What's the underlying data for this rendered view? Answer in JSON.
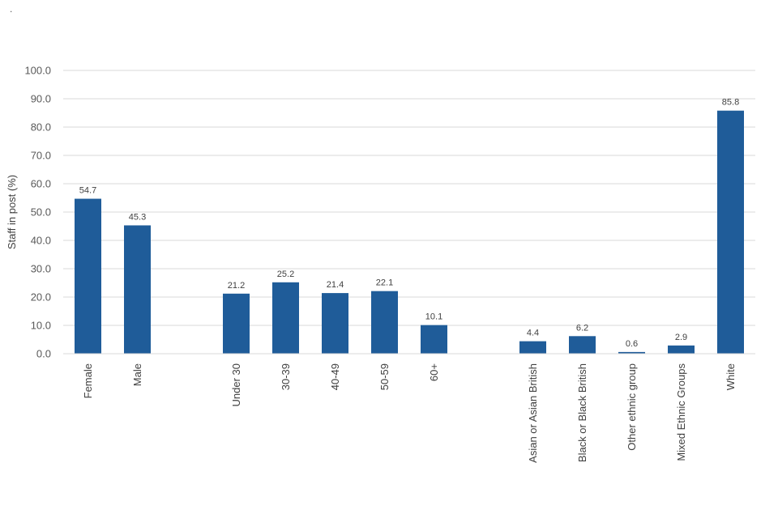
{
  "corner_mark": ".",
  "chart_data": {
    "type": "bar",
    "title": "",
    "xlabel": "",
    "ylabel": "Staff in post (%)",
    "ylim": [
      0,
      100
    ],
    "y_ticks": [
      "0.0",
      "10.0",
      "20.0",
      "30.0",
      "40.0",
      "50.0",
      "60.0",
      "70.0",
      "80.0",
      "90.0",
      "100.0"
    ],
    "grid": true,
    "legend": "none",
    "bar_color": "#1F5C99",
    "slots": [
      {
        "category": "Female",
        "value": 54.7,
        "label": "54.7"
      },
      {
        "category": "Male",
        "value": 45.3,
        "label": "45.3"
      },
      null,
      {
        "category": "Under 30",
        "value": 21.2,
        "label": "21.2"
      },
      {
        "category": "30-39",
        "value": 25.2,
        "label": "25.2"
      },
      {
        "category": "40-49",
        "value": 21.4,
        "label": "21.4"
      },
      {
        "category": "50-59",
        "value": 22.1,
        "label": "22.1"
      },
      {
        "category": "60+",
        "value": 10.1,
        "label": "10.1"
      },
      null,
      {
        "category": "Asian or Asian British",
        "value": 4.4,
        "label": "4.4"
      },
      {
        "category": "Black or Black British",
        "value": 6.2,
        "label": "6.2"
      },
      {
        "category": "Other ethnic group",
        "value": 0.6,
        "label": "0.6"
      },
      {
        "category": "Mixed Ethnic Groups",
        "value": 2.9,
        "label": "2.9"
      },
      {
        "category": "White",
        "value": 85.8,
        "label": "85.8"
      }
    ]
  }
}
